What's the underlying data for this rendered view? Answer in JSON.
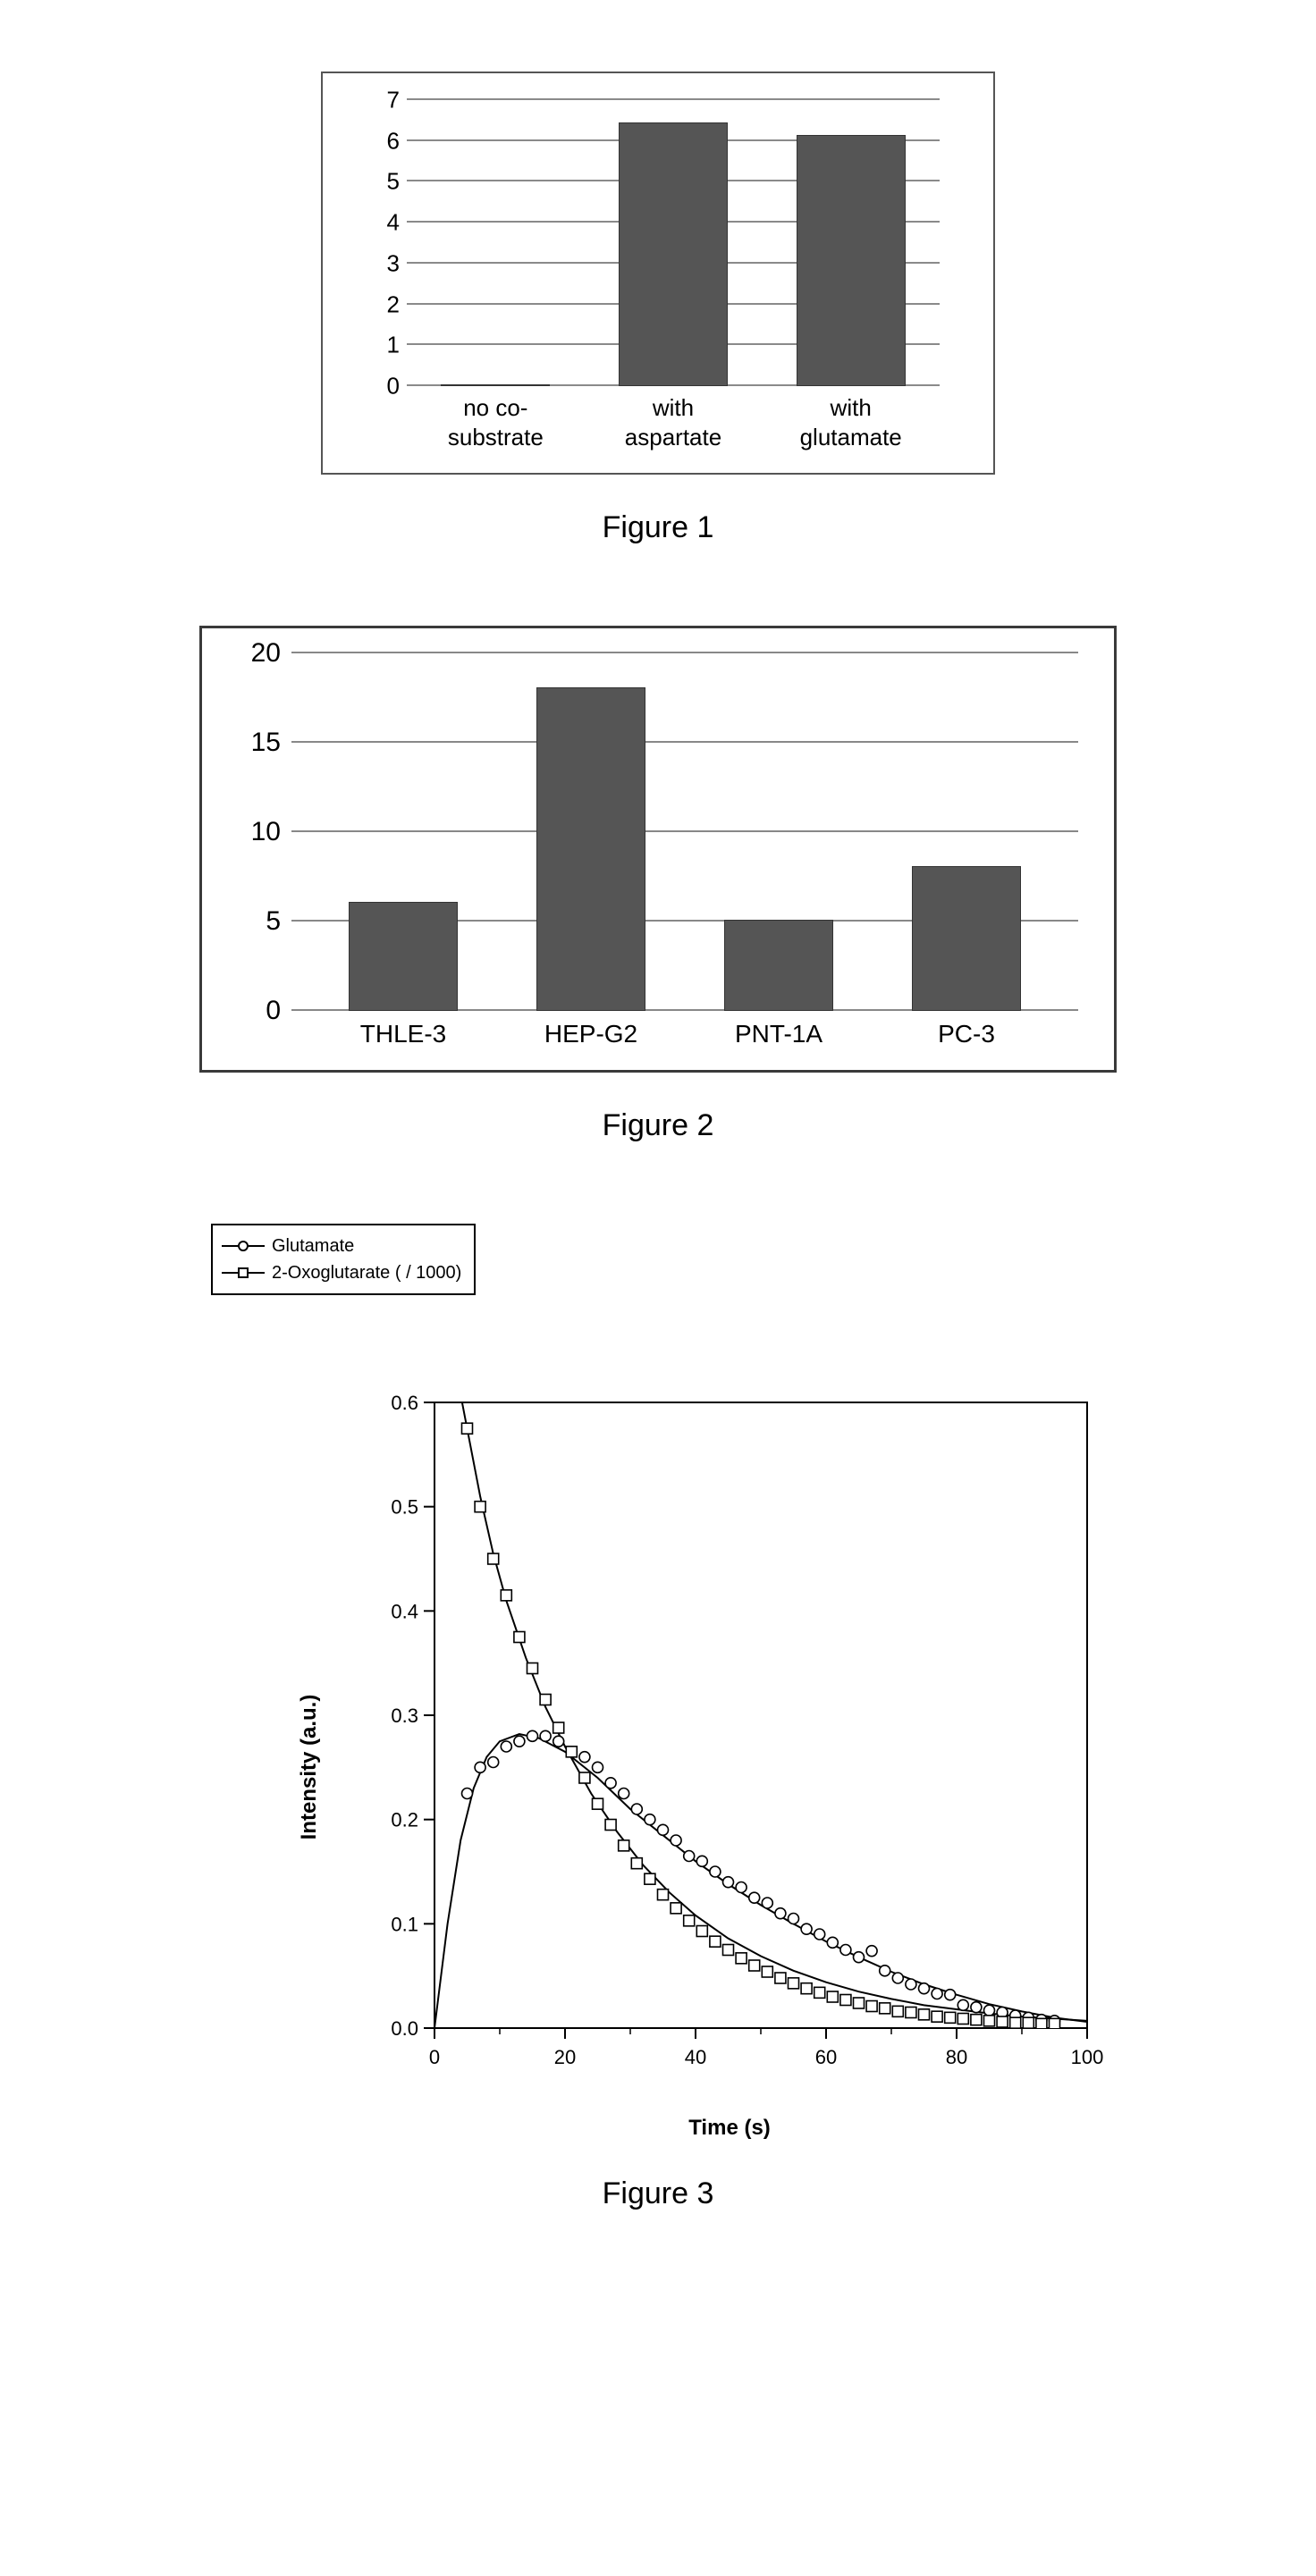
{
  "figure1": {
    "caption": "Figure 1",
    "type": "bar",
    "categories": [
      "no co-\nsubstrate",
      "with\naspartate",
      "with\nglutamate"
    ],
    "values": [
      0,
      6.4,
      6.1
    ],
    "ylim": [
      0,
      7
    ],
    "ytick_step": 1,
    "bar_color": "#555555",
    "grid_color": "#8a8a8a",
    "frame_border_color": "#555555",
    "background_color": "#ffffff",
    "tick_fontsize": 26
  },
  "figure2": {
    "caption": "Figure 2",
    "type": "bar",
    "categories": [
      "THLE-3",
      "HEP-G2",
      "PNT-1A",
      "PC-3"
    ],
    "values": [
      6,
      18,
      5,
      8
    ],
    "ylim": [
      0,
      20
    ],
    "ytick_step": 5,
    "bar_color": "#555555",
    "grid_color": "#888888",
    "frame_border_color": "#3a3a3a",
    "background_color": "#ffffff",
    "tick_fontsize": 28
  },
  "figure3": {
    "caption": "Figure 3",
    "type": "scatter-line",
    "xlabel": "Time (s)",
    "ylabel": "Intensity (a.u.)",
    "xlim": [
      0,
      100
    ],
    "ylim": [
      0,
      0.6
    ],
    "xtick_step": 20,
    "ytick_step": 0.1,
    "axis_color": "#000000",
    "tick_color": "#000000",
    "background_color": "#ffffff",
    "label_fontsize": 24,
    "tick_fontsize": 22,
    "marker_size": 12,
    "line_width": 2,
    "series": [
      {
        "name": "Glutamate",
        "marker": "circle",
        "color": "#000000",
        "x": [
          5,
          7,
          9,
          11,
          13,
          15,
          17,
          19,
          21,
          23,
          25,
          27,
          29,
          31,
          33,
          35,
          37,
          39,
          41,
          43,
          45,
          47,
          49,
          51,
          53,
          55,
          57,
          59,
          61,
          63,
          65,
          67,
          69,
          71,
          73,
          75,
          77,
          79,
          81,
          83,
          85,
          87,
          89,
          91,
          93,
          95
        ],
        "y": [
          0.225,
          0.25,
          0.255,
          0.27,
          0.275,
          0.28,
          0.28,
          0.275,
          0.265,
          0.26,
          0.25,
          0.235,
          0.225,
          0.21,
          0.2,
          0.19,
          0.18,
          0.165,
          0.16,
          0.15,
          0.14,
          0.135,
          0.125,
          0.12,
          0.11,
          0.105,
          0.095,
          0.09,
          0.082,
          0.075,
          0.068,
          0.074,
          0.055,
          0.048,
          0.042,
          0.038,
          0.033,
          0.032,
          0.022,
          0.02,
          0.017,
          0.015,
          0.012,
          0.01,
          0.008,
          0.007
        ],
        "fit_curve": [
          [
            0,
            0
          ],
          [
            2,
            0.1
          ],
          [
            4,
            0.18
          ],
          [
            6,
            0.23
          ],
          [
            8,
            0.26
          ],
          [
            10,
            0.275
          ],
          [
            13,
            0.282
          ],
          [
            16,
            0.278
          ],
          [
            20,
            0.265
          ],
          [
            25,
            0.24
          ],
          [
            30,
            0.21
          ],
          [
            35,
            0.185
          ],
          [
            40,
            0.16
          ],
          [
            45,
            0.138
          ],
          [
            50,
            0.118
          ],
          [
            55,
            0.1
          ],
          [
            60,
            0.083
          ],
          [
            65,
            0.068
          ],
          [
            70,
            0.054
          ],
          [
            75,
            0.042
          ],
          [
            80,
            0.032
          ],
          [
            85,
            0.023
          ],
          [
            90,
            0.016
          ],
          [
            95,
            0.01
          ],
          [
            100,
            0.006
          ]
        ]
      },
      {
        "name": "2-Oxoglutarate ( / 1000)",
        "marker": "square",
        "color": "#000000",
        "x": [
          5,
          7,
          9,
          11,
          13,
          15,
          17,
          19,
          21,
          23,
          25,
          27,
          29,
          31,
          33,
          35,
          37,
          39,
          41,
          43,
          45,
          47,
          49,
          51,
          53,
          55,
          57,
          59,
          61,
          63,
          65,
          67,
          69,
          71,
          73,
          75,
          77,
          79,
          81,
          83,
          85,
          87,
          89,
          91,
          93,
          95
        ],
        "y": [
          0.575,
          0.5,
          0.45,
          0.415,
          0.375,
          0.345,
          0.315,
          0.288,
          0.265,
          0.24,
          0.215,
          0.195,
          0.175,
          0.158,
          0.143,
          0.128,
          0.115,
          0.103,
          0.093,
          0.083,
          0.075,
          0.067,
          0.06,
          0.054,
          0.048,
          0.043,
          0.038,
          0.034,
          0.03,
          0.027,
          0.024,
          0.021,
          0.019,
          0.016,
          0.015,
          0.013,
          0.011,
          0.01,
          0.009,
          0.008,
          0.007,
          0.006,
          0.005,
          0.005,
          0.004,
          0.004
        ],
        "fit_curve": [
          [
            3,
            0.64
          ],
          [
            5,
            0.575
          ],
          [
            7,
            0.51
          ],
          [
            9,
            0.455
          ],
          [
            11,
            0.41
          ],
          [
            14,
            0.355
          ],
          [
            17,
            0.308
          ],
          [
            20,
            0.27
          ],
          [
            24,
            0.225
          ],
          [
            28,
            0.188
          ],
          [
            32,
            0.156
          ],
          [
            36,
            0.13
          ],
          [
            40,
            0.108
          ],
          [
            45,
            0.086
          ],
          [
            50,
            0.069
          ],
          [
            55,
            0.055
          ],
          [
            60,
            0.044
          ],
          [
            65,
            0.035
          ],
          [
            70,
            0.028
          ],
          [
            75,
            0.022
          ],
          [
            80,
            0.018
          ],
          [
            85,
            0.014
          ],
          [
            90,
            0.011
          ],
          [
            95,
            0.009
          ],
          [
            100,
            0.007
          ]
        ]
      }
    ],
    "legend": {
      "items": [
        "Glutamate",
        "2-Oxoglutarate ( / 1000)"
      ],
      "border_color": "#000000",
      "fontsize": 20
    }
  }
}
